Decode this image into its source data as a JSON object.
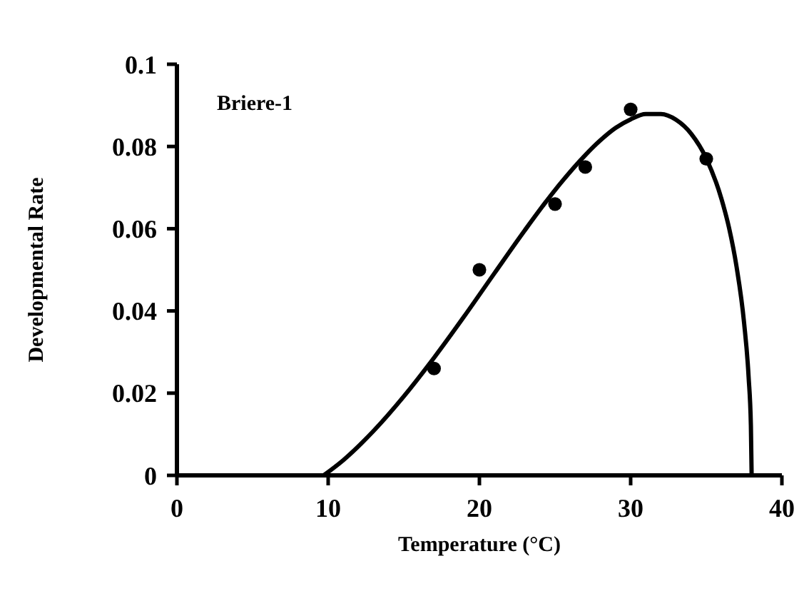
{
  "chart_data": {
    "type": "scatter",
    "xlabel": "Temperature (°C)",
    "ylabel": "Developmental Rate",
    "annotations": [
      "Briere-1"
    ],
    "xlim": [
      0,
      40
    ],
    "xticks": [
      0,
      10,
      20,
      30,
      40
    ],
    "ylim": [
      0,
      0.1
    ],
    "yticks": [
      0,
      0.02,
      0.04,
      0.06,
      0.08,
      0.1
    ],
    "grid": false,
    "series": [
      {
        "type": "scatter",
        "color": "#000000",
        "marker": "circle",
        "x": [
          17,
          20,
          25,
          27,
          30,
          35
        ],
        "values": [
          0.026,
          0.05,
          0.066,
          0.075,
          0.089,
          0.077
        ]
      },
      {
        "type": "line",
        "color": "#000000",
        "marker": "none",
        "line_style": "solid",
        "x": [
          9.7,
          11,
          13,
          15,
          17,
          19,
          21,
          23,
          25,
          27,
          28,
          29,
          30,
          31,
          32,
          33,
          34,
          35,
          36,
          36.5,
          37,
          37.5,
          37.8,
          37.95,
          38
        ],
        "values": [
          0,
          0.0037,
          0.0108,
          0.0192,
          0.0286,
          0.0387,
          0.0492,
          0.0596,
          0.0694,
          0.0779,
          0.0815,
          0.0845,
          0.0866,
          0.0879,
          0.0879,
          0.0865,
          0.0831,
          0.0771,
          0.0673,
          0.0603,
          0.0508,
          0.0371,
          0.0239,
          0.0121,
          0
        ]
      }
    ]
  }
}
